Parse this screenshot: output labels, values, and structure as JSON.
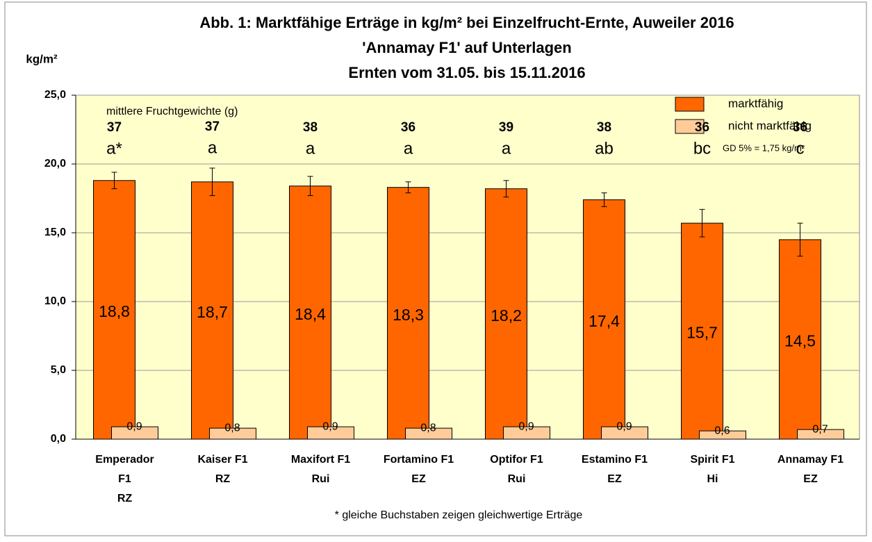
{
  "chart_data": {
    "type": "bar",
    "title": [
      "Abb. 1:   Marktfähige Erträge in kg/m² bei Einzelfrucht-Ernte, Auweiler 2016",
      "'Annamay F1' auf Unterlagen",
      "Ernten vom 31.05.  bis 15.11.2016"
    ],
    "y_label": "kg/m²",
    "categories": [
      [
        "Emperador",
        "F1",
        "RZ"
      ],
      [
        "Kaiser F1",
        "RZ"
      ],
      [
        "Maxifort F1",
        "Rui"
      ],
      [
        "Fortamino F1",
        "EZ"
      ],
      [
        "Optifor F1",
        "Rui"
      ],
      [
        "Estamino F1",
        "EZ"
      ],
      [
        "Spirit F1",
        "Hi"
      ],
      [
        "Annamay F1",
        "EZ"
      ]
    ],
    "series": [
      {
        "name": "marktfähig",
        "color": "#ff6600",
        "values": [
          18.8,
          18.7,
          18.4,
          18.3,
          18.2,
          17.4,
          15.7,
          14.5
        ],
        "value_labels": [
          "18,8",
          "18,7",
          "18,4",
          "18,3",
          "18,2",
          "17,4",
          "15,7",
          "14,5"
        ],
        "errors": [
          0.6,
          1.0,
          0.7,
          0.4,
          0.6,
          0.5,
          1.0,
          1.2
        ]
      },
      {
        "name": "nicht marktfähig",
        "color": "#ffcc99",
        "values": [
          0.9,
          0.8,
          0.9,
          0.8,
          0.9,
          0.9,
          0.6,
          0.7
        ],
        "value_labels": [
          "0,9",
          "0,8",
          "0,9",
          "0,8",
          "0,9",
          "0,9",
          "0,6",
          "0,7"
        ]
      }
    ],
    "fruit_weight_label": "mittlere Fruchtgewichte (g)",
    "fruit_weights": [
      37,
      37,
      38,
      36,
      39,
      38,
      36,
      36
    ],
    "letters": [
      "a*",
      "a",
      "a",
      "a",
      "a",
      "ab",
      "bc",
      "c"
    ],
    "gd_note": "GD 5% = 1,75 kg/m²",
    "footnote": "* gleiche Buchstaben zeigen gleichwertige Erträge",
    "ylim": [
      0,
      25
    ],
    "yticks": [
      {
        "value": 0,
        "label": "0,0"
      },
      {
        "value": 5,
        "label": "5,0"
      },
      {
        "value": 10,
        "label": "10,0"
      },
      {
        "value": 15,
        "label": "15,0"
      },
      {
        "value": 20,
        "label": "20,0"
      },
      {
        "value": 25,
        "label": "25,0"
      }
    ],
    "grid": true,
    "legend": "top-right",
    "background": "#ffffcc"
  }
}
